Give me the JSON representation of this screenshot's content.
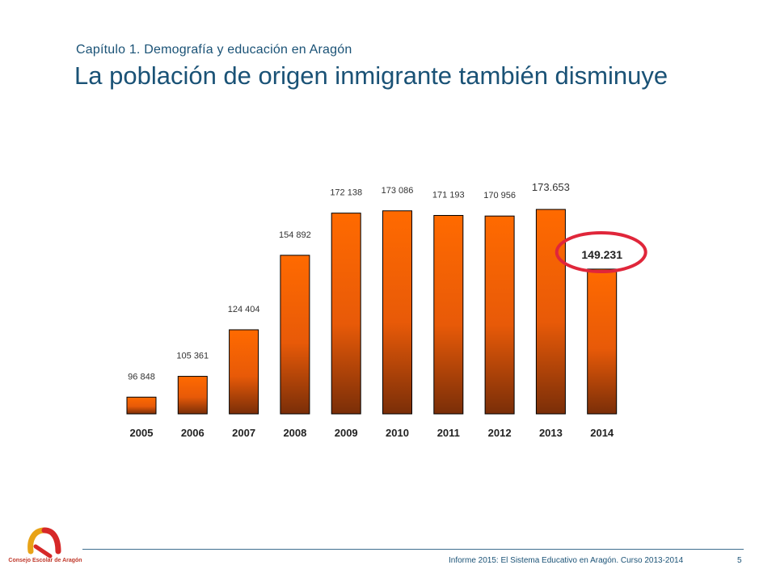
{
  "header": {
    "chapter": "Capítulo 1. Demografía y educación en Aragón",
    "title": "La población de origen inmigrante también disminuye"
  },
  "chart_data": {
    "type": "bar",
    "title": "",
    "xlabel": "",
    "ylabel": "",
    "categories": [
      "2005",
      "2006",
      "2007",
      "2008",
      "2009",
      "2010",
      "2011",
      "2012",
      "2013",
      "2014"
    ],
    "values": [
      96848,
      105361,
      124404,
      154892,
      172138,
      173086,
      171193,
      170956,
      173653,
      149231
    ],
    "data_labels": [
      "96 848",
      "105 361",
      "124 404",
      "154 892",
      "172 138",
      "173 086",
      "171 193",
      "170 956",
      "173.653",
      "149.231"
    ],
    "highlight_category": "2014",
    "ylim": [
      90000,
      175000
    ],
    "grid": false,
    "colors": {
      "bar_top": "#ff6a00",
      "bar_bottom": "#7a2e08",
      "highlight_ring": "#e0263a",
      "label": "#1a1a1a"
    }
  },
  "footer": {
    "text": "Informe 2015: El Sistema Educativo en Aragón. Curso 2013-2014",
    "page": "5",
    "logo_text": "Consejo Escolar de Aragón"
  }
}
